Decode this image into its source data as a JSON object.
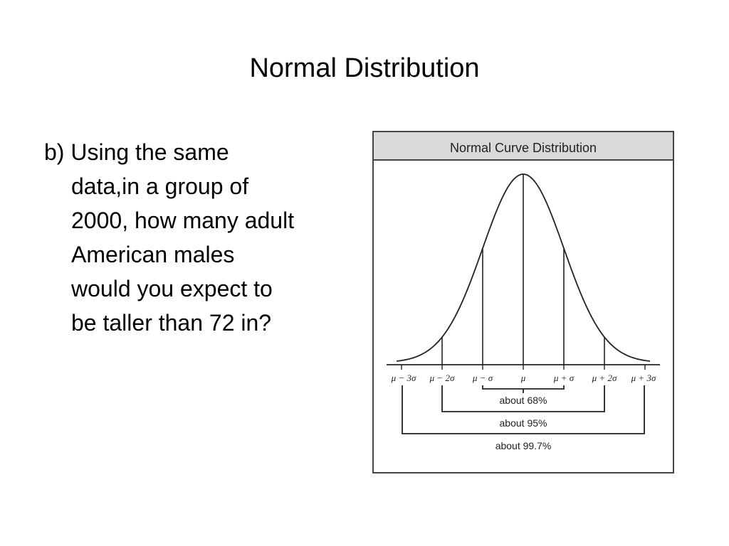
{
  "slide": {
    "title": "Normal Distribution"
  },
  "question": {
    "lines": [
      "b) Using the same",
      "data,in a group of",
      "2000, how many adult",
      "American males",
      "would you expect to",
      "be taller than 72 in?"
    ]
  },
  "figure": {
    "header": "Normal Curve Distribution",
    "header_color": "#d9d9d9",
    "axis_labels": [
      "μ − 3σ",
      "μ − 2σ",
      "μ − σ",
      "μ",
      "μ + σ",
      "μ + 2σ",
      "μ + 3σ"
    ],
    "brackets": [
      {
        "span": "1 sigma",
        "label": "about 68%"
      },
      {
        "span": "2 sigma",
        "label": "about 95%"
      },
      {
        "span": "3 sigma",
        "label": "about 99.7%"
      }
    ]
  }
}
